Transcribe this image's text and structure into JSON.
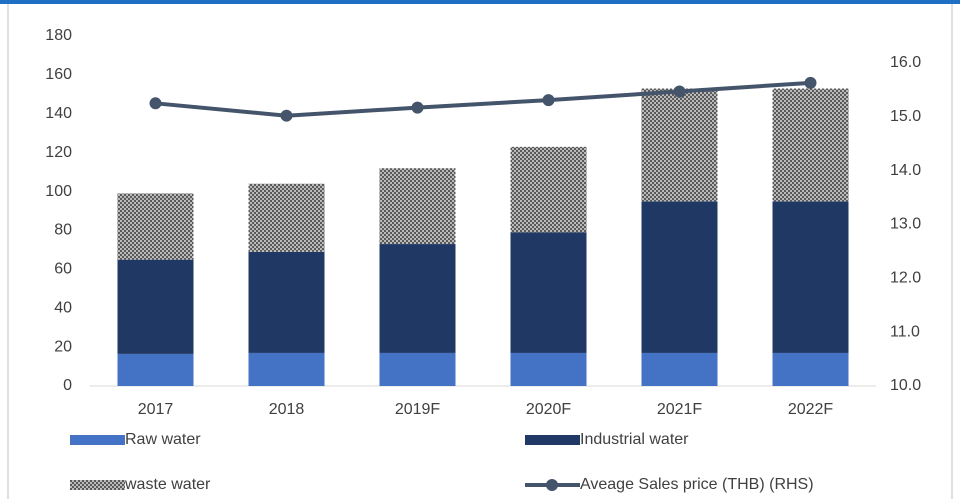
{
  "chart_data": {
    "type": "bar",
    "stacked": true,
    "categories": [
      "2017",
      "2018",
      "2019F",
      "2020F",
      "2021F",
      "2022F"
    ],
    "series": [
      {
        "name": "Raw water",
        "color": "#4472c4",
        "values": [
          16.5,
          17,
          17,
          17,
          17,
          17
        ]
      },
      {
        "name": "Industrial water",
        "color": "#203864",
        "values": [
          48.5,
          52,
          56,
          62,
          78,
          78
        ]
      },
      {
        "name": "waste water",
        "color": "#5a5a5a",
        "pattern": "dots",
        "values": [
          34,
          35,
          39,
          44,
          58,
          58
        ]
      },
      {
        "name": "Aveage Sales price (THB) (RHS)",
        "color": "#44546a",
        "type": "line",
        "axis": "y2",
        "values": [
          15.25,
          15.02,
          15.17,
          15.31,
          15.47,
          15.63
        ]
      }
    ],
    "ylim": [
      0,
      180
    ],
    "yticks": [
      0,
      20,
      40,
      60,
      80,
      100,
      120,
      140,
      160,
      180
    ],
    "y2lim": [
      10,
      16.5
    ],
    "y2ticks": [
      {
        "value": 10,
        "label": "10.0"
      },
      {
        "value": 11,
        "label": "11.0"
      },
      {
        "value": 12,
        "label": "12.0"
      },
      {
        "value": 13,
        "label": "13.0"
      },
      {
        "value": 14,
        "label": "14.0"
      },
      {
        "value": 15,
        "label": "15.0"
      },
      {
        "value": 16,
        "label": "16.0"
      }
    ],
    "grid": false,
    "legend": "bottom"
  }
}
